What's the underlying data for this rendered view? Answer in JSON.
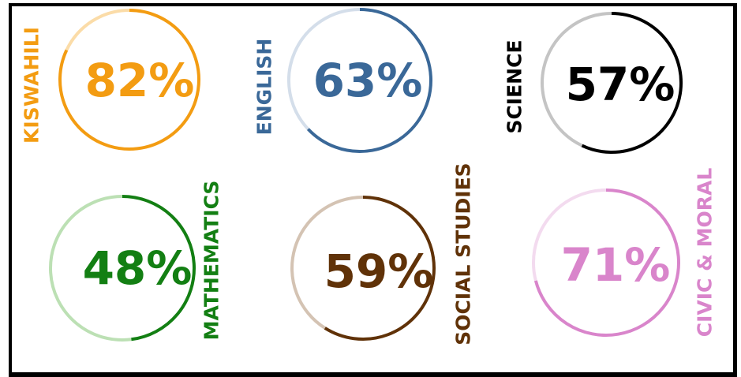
{
  "chart_data": {
    "type": "pie",
    "subjects": [
      {
        "name": "KISWAHILI",
        "value": 82,
        "display": "82%",
        "color": "#F39C12",
        "track": "#FBDCA8"
      },
      {
        "name": "ENGLISH",
        "value": 63,
        "display": "63%",
        "color": "#3A6898",
        "track": "#D4DEEA"
      },
      {
        "name": "SCIENCE",
        "value": 57,
        "display": "57%",
        "color": "#000000",
        "track": "#C4C4C4"
      },
      {
        "name": "MATHEMATICS",
        "value": 48,
        "display": "48%",
        "color": "#137F13",
        "track": "#BCE0B4"
      },
      {
        "name": "SOCIAL STUDIES",
        "value": 59,
        "display": "59%",
        "color": "#603208",
        "track": "#D4C3B3"
      },
      {
        "name": "CIVIC & MORAL",
        "value": 71,
        "display": "71%",
        "color": "#D985CB",
        "track": "#F3DBEF"
      }
    ]
  }
}
